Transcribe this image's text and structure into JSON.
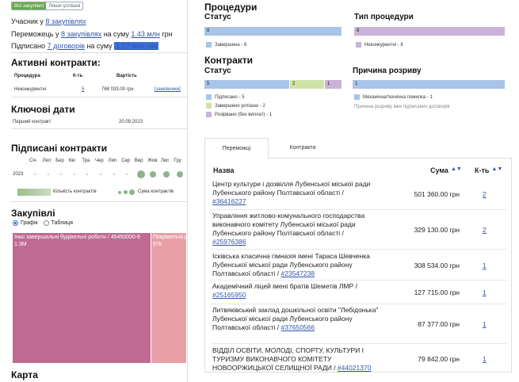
{
  "toggle": {
    "all_label": "Всі закупівлі",
    "success_label": "Лише успішні"
  },
  "summary": {
    "line1_prefix": "Учасник у ",
    "line1_link": "8 закупівлях",
    "line2_prefix": "Переможець у ",
    "line2_link": "8 закупівлях",
    "line2_mid": " на суму ",
    "line2_amount": "1.43 млн",
    "line2_suffix": " грн",
    "line3_prefix": "Підписано ",
    "line3_link": "7 договорів",
    "line3_mid": " на суму ",
    "line3_amount": "1.27 млн грн"
  },
  "active_contracts": {
    "title": "Активні контракти:",
    "col_procedure": "Процедура",
    "col_count": "К-ть",
    "col_value": "Вартість",
    "row_procedure": "Неконкурентні",
    "row_count": "5",
    "row_value": "768 033.00 грн",
    "row_link": "[замовники]"
  },
  "key_dates": {
    "title": "Ключові дати",
    "label": "Перший контракт",
    "value": "20.09.2023"
  },
  "signed": {
    "title": "Підписані контракти",
    "months": [
      "Січ",
      "Лют",
      "Бер",
      "Кві",
      "Тра",
      "Чер",
      "Лип",
      "Сер",
      "Вер",
      "Жов",
      "Лис",
      "Гру"
    ],
    "year": "2023",
    "dot_values": [
      0,
      0,
      0,
      0,
      0,
      0,
      0,
      0,
      3,
      1,
      1,
      1
    ],
    "legend_count": "Кількість контрактів",
    "legend_sum": "Сума контрактів"
  },
  "purchases": {
    "title": "Закупівлі",
    "radio_chart": "Графік",
    "radio_table": "Таблиця",
    "tm1_label": "Інші завершальні будівельні роботи / 45450000-6",
    "tm1_value": "1.3M",
    "tm2_label": "Покрівельні роботи",
    "tm2_value": "97k"
  },
  "map": {
    "title": "Карта"
  },
  "procedures": {
    "title": "Процедури",
    "status_title": "Статус",
    "status_bar_value": "8",
    "status_legend": "Завершена - 8",
    "type_title": "Тип процедури",
    "type_bar_value": "8",
    "type_legend": "Неконкурентні - 8"
  },
  "contracts": {
    "title": "Контракти",
    "status_title": "Статус",
    "bars": [
      "5",
      "2",
      "1"
    ],
    "legend": [
      "Підписано - 5",
      "Завершено успішно - 2",
      "Розірвано (без виплат) - 1"
    ],
    "reason_title": "Причина розриву",
    "reason_bar": "1",
    "reason_legend": "Механічна/технічна помилка - 1",
    "reason_note": "Причина розриву вже підписаних договорів"
  },
  "colors": {
    "blue": "#a8c4e8",
    "green": "#cfe3a6",
    "purple": "#c9b3d9",
    "toggle_green": "#6aa84f",
    "tm1": "#c06a92",
    "tm2": "#e8a0a6",
    "link": "#3355aa"
  },
  "tabs": {
    "winners": "Переможці",
    "contracts": "Контракти"
  },
  "table": {
    "col_name": "Назва",
    "col_sum": "Сума",
    "col_count": "К-ть",
    "rows": [
      {
        "name": "Центр культури і дозвілля Лубенської міської ради Лубенського району Полтавської області / ",
        "id": "#36416227",
        "sum": "501 360.00 грн",
        "count": "2"
      },
      {
        "name": "Управління житлово-комунального господарства виконавчого комітету Лубенської міської ради Лубенського району Полтавської області / ",
        "id": "#25976386",
        "sum": "329 130.00 грн",
        "count": "2"
      },
      {
        "name": "Ісківська класична гімназія імені Тараса Шевченка Лубенської міської ради Лубенського району Полтавської області / ",
        "id": "#23547238",
        "sum": "308 534.00 грн",
        "count": "1"
      },
      {
        "name": "Академічний ліцей імені братів Шеметів ЛМР / ",
        "id": "#25165950",
        "sum": "127 715.00 грн",
        "count": "1"
      },
      {
        "name": "Литвяківський заклад дошкільної освіти \"Лебідонька\" Лубенської міської ради Лубенського району Полтавської області / ",
        "id": "#37650566",
        "sum": "87 377.00 грн",
        "count": "1"
      },
      {
        "name": "ВІДДІЛ ОСВІТИ, МОЛОДІ, СПОРТУ, КУЛЬТУРИ І ТУРИЗМУ ВИКОНАВЧОГО КОМІТЕТУ НОВООРЖИЦЬКОЇ СЕЛИЩНОЇ РАДИ / ",
        "id": "#44021370",
        "sum": "79 842.00 грн",
        "count": "1"
      }
    ]
  }
}
